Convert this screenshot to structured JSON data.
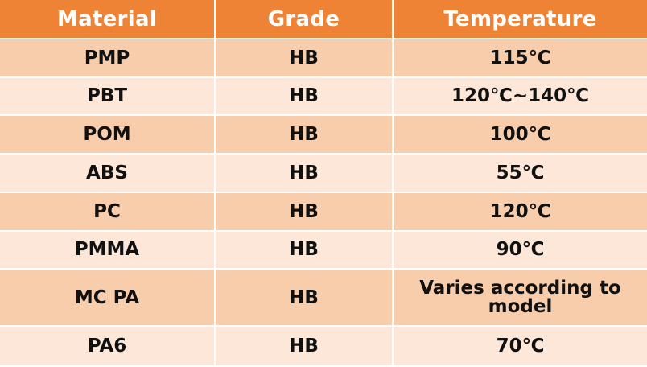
{
  "colors": {
    "header_bg": "#ee8235",
    "header_text": "#ffffff",
    "row_dark": "#f8cdac",
    "row_light": "#fde7d8",
    "cell_text": "#111111"
  },
  "table": {
    "headers": [
      "Material",
      "Grade",
      "Temperature"
    ],
    "rows": [
      {
        "material": "PMP",
        "grade": "HB",
        "temperature": "115℃"
      },
      {
        "material": "PBT",
        "grade": "HB",
        "temperature": "120℃~140℃"
      },
      {
        "material": "POM",
        "grade": "HB",
        "temperature": "100℃"
      },
      {
        "material": "ABS",
        "grade": "HB",
        "temperature": "55℃"
      },
      {
        "material": "PC",
        "grade": "HB",
        "temperature": "120℃"
      },
      {
        "material": "PMMA",
        "grade": "HB",
        "temperature": "90℃"
      },
      {
        "material": "MC PA",
        "grade": "HB",
        "temperature": "Varies according to model"
      },
      {
        "material": "PA6",
        "grade": "HB",
        "temperature": "70℃"
      }
    ]
  }
}
